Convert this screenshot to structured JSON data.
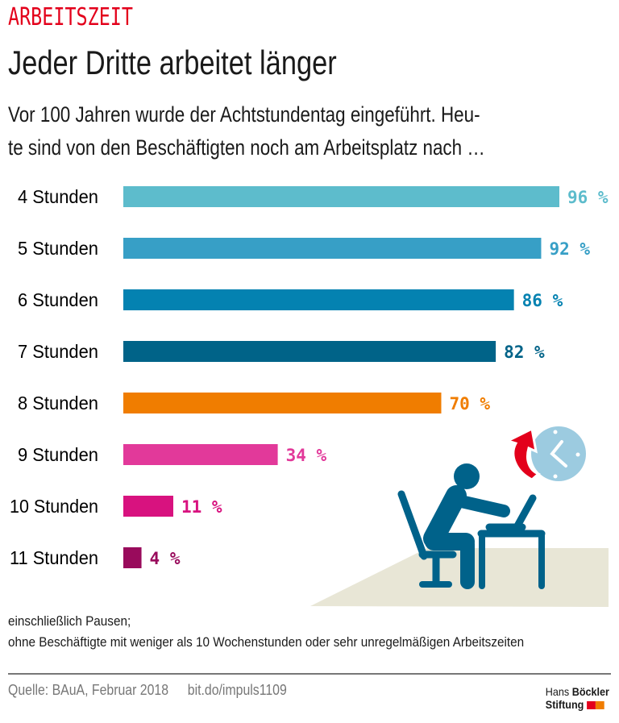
{
  "header": {
    "kicker": "ARBEITSZEIT",
    "title": "Jeder Dritte arbeitet länger",
    "subtitle_lines": [
      "Vor 100 Jahren wurde der Achtstundentag eingeführt. Heu-",
      "te sind von den Beschäftigten noch am Arbeitsplatz nach …"
    ]
  },
  "chart_data": {
    "type": "bar",
    "orientation": "horizontal",
    "categories": [
      "4 Stunden",
      "5 Stunden",
      "6 Stunden",
      "7 Stunden",
      "8 Stunden",
      "9 Stunden",
      "10 Stunden",
      "11 Stunden"
    ],
    "values": [
      96,
      92,
      86,
      82,
      70,
      34,
      11,
      4
    ],
    "value_labels": [
      "96 %",
      "92 %",
      "86 %",
      "82 %",
      "70 %",
      "34 %",
      "11 %",
      "4 %"
    ],
    "colors": [
      "#5dbccc",
      "#379fc6",
      "#0482b1",
      "#006388",
      "#f07d00",
      "#e2399a",
      "#d8127f",
      "#990b5c"
    ],
    "xlim": [
      0,
      100
    ],
    "grid": false
  },
  "notes": [
    "einschließlich Pausen;",
    "ohne Beschäftigte mit weniger als 10 Wochenstunden oder sehr unregelmäßigen Arbeitszeiten"
  ],
  "footer": {
    "source": "Quelle: BAuA, Februar 2018",
    "link": "bit.do/impuls1109",
    "logo": {
      "line1a": "Hans",
      "line1b": "Böckler",
      "line2": "Stiftung",
      "colors": [
        "#e3001b",
        "#f07d00"
      ]
    }
  },
  "illustration": {
    "icons": [
      "person-at-laptop-icon",
      "clock-icon",
      "arrow-up-icon"
    ],
    "colors": {
      "figure": "#00628a",
      "clock": "#9ccbe0",
      "arrow": "#e3001b",
      "floor": "#e8e6d6"
    }
  }
}
